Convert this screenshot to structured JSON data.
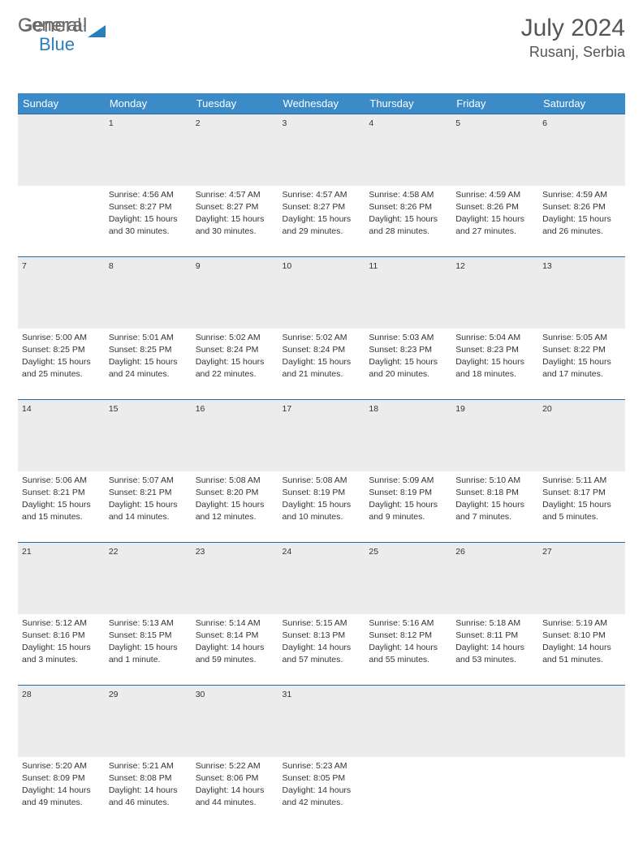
{
  "brand": {
    "part1": "General",
    "part2": "Blue"
  },
  "title": {
    "month_year": "July 2024",
    "location": "Rusanj, Serbia"
  },
  "colors": {
    "header_bg": "#3b8bc9",
    "daynum_bg": "#ececec",
    "rule": "#2a6aa0"
  },
  "weekdays": [
    "Sunday",
    "Monday",
    "Tuesday",
    "Wednesday",
    "Thursday",
    "Friday",
    "Saturday"
  ],
  "weeks": [
    {
      "nums": [
        "",
        "1",
        "2",
        "3",
        "4",
        "5",
        "6"
      ],
      "cells": [
        {},
        {
          "sunrise": "Sunrise: 4:56 AM",
          "sunset": "Sunset: 8:27 PM",
          "day1": "Daylight: 15 hours",
          "day2": "and 30 minutes."
        },
        {
          "sunrise": "Sunrise: 4:57 AM",
          "sunset": "Sunset: 8:27 PM",
          "day1": "Daylight: 15 hours",
          "day2": "and 30 minutes."
        },
        {
          "sunrise": "Sunrise: 4:57 AM",
          "sunset": "Sunset: 8:27 PM",
          "day1": "Daylight: 15 hours",
          "day2": "and 29 minutes."
        },
        {
          "sunrise": "Sunrise: 4:58 AM",
          "sunset": "Sunset: 8:26 PM",
          "day1": "Daylight: 15 hours",
          "day2": "and 28 minutes."
        },
        {
          "sunrise": "Sunrise: 4:59 AM",
          "sunset": "Sunset: 8:26 PM",
          "day1": "Daylight: 15 hours",
          "day2": "and 27 minutes."
        },
        {
          "sunrise": "Sunrise: 4:59 AM",
          "sunset": "Sunset: 8:26 PM",
          "day1": "Daylight: 15 hours",
          "day2": "and 26 minutes."
        }
      ]
    },
    {
      "nums": [
        "7",
        "8",
        "9",
        "10",
        "11",
        "12",
        "13"
      ],
      "cells": [
        {
          "sunrise": "Sunrise: 5:00 AM",
          "sunset": "Sunset: 8:25 PM",
          "day1": "Daylight: 15 hours",
          "day2": "and 25 minutes."
        },
        {
          "sunrise": "Sunrise: 5:01 AM",
          "sunset": "Sunset: 8:25 PM",
          "day1": "Daylight: 15 hours",
          "day2": "and 24 minutes."
        },
        {
          "sunrise": "Sunrise: 5:02 AM",
          "sunset": "Sunset: 8:24 PM",
          "day1": "Daylight: 15 hours",
          "day2": "and 22 minutes."
        },
        {
          "sunrise": "Sunrise: 5:02 AM",
          "sunset": "Sunset: 8:24 PM",
          "day1": "Daylight: 15 hours",
          "day2": "and 21 minutes."
        },
        {
          "sunrise": "Sunrise: 5:03 AM",
          "sunset": "Sunset: 8:23 PM",
          "day1": "Daylight: 15 hours",
          "day2": "and 20 minutes."
        },
        {
          "sunrise": "Sunrise: 5:04 AM",
          "sunset": "Sunset: 8:23 PM",
          "day1": "Daylight: 15 hours",
          "day2": "and 18 minutes."
        },
        {
          "sunrise": "Sunrise: 5:05 AM",
          "sunset": "Sunset: 8:22 PM",
          "day1": "Daylight: 15 hours",
          "day2": "and 17 minutes."
        }
      ]
    },
    {
      "nums": [
        "14",
        "15",
        "16",
        "17",
        "18",
        "19",
        "20"
      ],
      "cells": [
        {
          "sunrise": "Sunrise: 5:06 AM",
          "sunset": "Sunset: 8:21 PM",
          "day1": "Daylight: 15 hours",
          "day2": "and 15 minutes."
        },
        {
          "sunrise": "Sunrise: 5:07 AM",
          "sunset": "Sunset: 8:21 PM",
          "day1": "Daylight: 15 hours",
          "day2": "and 14 minutes."
        },
        {
          "sunrise": "Sunrise: 5:08 AM",
          "sunset": "Sunset: 8:20 PM",
          "day1": "Daylight: 15 hours",
          "day2": "and 12 minutes."
        },
        {
          "sunrise": "Sunrise: 5:08 AM",
          "sunset": "Sunset: 8:19 PM",
          "day1": "Daylight: 15 hours",
          "day2": "and 10 minutes."
        },
        {
          "sunrise": "Sunrise: 5:09 AM",
          "sunset": "Sunset: 8:19 PM",
          "day1": "Daylight: 15 hours",
          "day2": "and 9 minutes."
        },
        {
          "sunrise": "Sunrise: 5:10 AM",
          "sunset": "Sunset: 8:18 PM",
          "day1": "Daylight: 15 hours",
          "day2": "and 7 minutes."
        },
        {
          "sunrise": "Sunrise: 5:11 AM",
          "sunset": "Sunset: 8:17 PM",
          "day1": "Daylight: 15 hours",
          "day2": "and 5 minutes."
        }
      ]
    },
    {
      "nums": [
        "21",
        "22",
        "23",
        "24",
        "25",
        "26",
        "27"
      ],
      "cells": [
        {
          "sunrise": "Sunrise: 5:12 AM",
          "sunset": "Sunset: 8:16 PM",
          "day1": "Daylight: 15 hours",
          "day2": "and 3 minutes."
        },
        {
          "sunrise": "Sunrise: 5:13 AM",
          "sunset": "Sunset: 8:15 PM",
          "day1": "Daylight: 15 hours",
          "day2": "and 1 minute."
        },
        {
          "sunrise": "Sunrise: 5:14 AM",
          "sunset": "Sunset: 8:14 PM",
          "day1": "Daylight: 14 hours",
          "day2": "and 59 minutes."
        },
        {
          "sunrise": "Sunrise: 5:15 AM",
          "sunset": "Sunset: 8:13 PM",
          "day1": "Daylight: 14 hours",
          "day2": "and 57 minutes."
        },
        {
          "sunrise": "Sunrise: 5:16 AM",
          "sunset": "Sunset: 8:12 PM",
          "day1": "Daylight: 14 hours",
          "day2": "and 55 minutes."
        },
        {
          "sunrise": "Sunrise: 5:18 AM",
          "sunset": "Sunset: 8:11 PM",
          "day1": "Daylight: 14 hours",
          "day2": "and 53 minutes."
        },
        {
          "sunrise": "Sunrise: 5:19 AM",
          "sunset": "Sunset: 8:10 PM",
          "day1": "Daylight: 14 hours",
          "day2": "and 51 minutes."
        }
      ]
    },
    {
      "nums": [
        "28",
        "29",
        "30",
        "31",
        "",
        "",
        ""
      ],
      "cells": [
        {
          "sunrise": "Sunrise: 5:20 AM",
          "sunset": "Sunset: 8:09 PM",
          "day1": "Daylight: 14 hours",
          "day2": "and 49 minutes."
        },
        {
          "sunrise": "Sunrise: 5:21 AM",
          "sunset": "Sunset: 8:08 PM",
          "day1": "Daylight: 14 hours",
          "day2": "and 46 minutes."
        },
        {
          "sunrise": "Sunrise: 5:22 AM",
          "sunset": "Sunset: 8:06 PM",
          "day1": "Daylight: 14 hours",
          "day2": "and 44 minutes."
        },
        {
          "sunrise": "Sunrise: 5:23 AM",
          "sunset": "Sunset: 8:05 PM",
          "day1": "Daylight: 14 hours",
          "day2": "and 42 minutes."
        },
        {},
        {},
        {}
      ]
    }
  ]
}
